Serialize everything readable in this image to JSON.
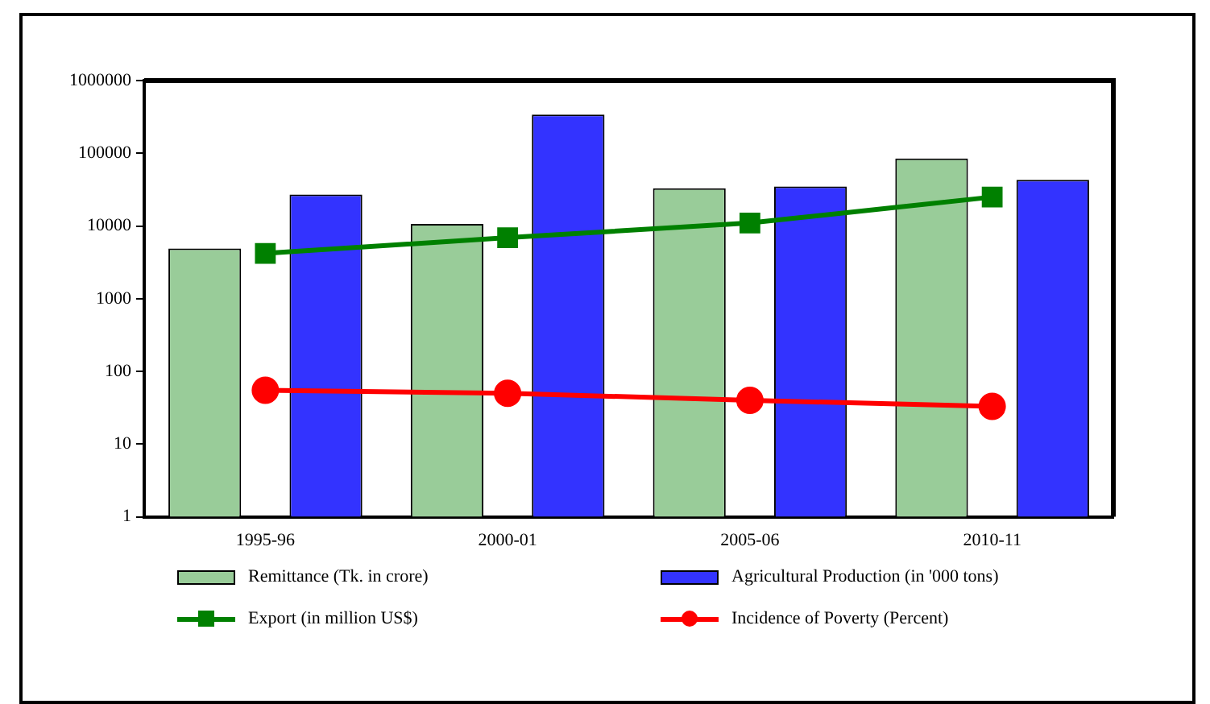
{
  "chart_data": {
    "type": "bar",
    "categories": [
      "1995-96",
      "2000-01",
      "2005-06",
      "2010-11"
    ],
    "log": "y",
    "ylim": [
      1,
      1000000
    ],
    "yticks": [
      1,
      10,
      100,
      1000,
      10000,
      100000,
      1000000
    ],
    "grid": false,
    "legend": "bottom",
    "series": [
      {
        "name": "Remittance (Tk. in crore)",
        "color": "#99cc99",
        "values": [
          4900,
          10700,
          33000,
          85000
        ]
      },
      {
        "name": "Agricultural Production (in '000 tons)",
        "color": "#3333ff",
        "values": [
          27000,
          340000,
          35000,
          43000
        ]
      },
      {
        "name": "Export (in million US$)",
        "type": "line",
        "marker": "square",
        "color": "#008000",
        "values": [
          4200,
          6900,
          11000,
          25000
        ]
      },
      {
        "name": "Incidence of Poverty (Percent)",
        "type": "line",
        "marker": "circle",
        "color": "#ff0000",
        "values": [
          55,
          50,
          40,
          33
        ]
      }
    ]
  }
}
